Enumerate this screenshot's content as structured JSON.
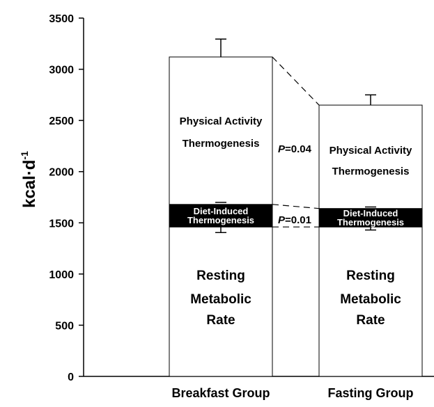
{
  "chart_data": {
    "type": "bar",
    "subtype": "stacked",
    "ylabel_main": "kcal·d",
    "ylabel_sup": "-1",
    "ylim": [
      0,
      3500
    ],
    "yticks": [
      0,
      500,
      1000,
      1500,
      2000,
      2500,
      3000,
      3500
    ],
    "categories": [
      "Breakfast Group",
      "Fasting Group"
    ],
    "series": [
      {
        "name": "Resting Metabolic Rate",
        "values": [
          1460,
          1460
        ],
        "color": "#ffffff"
      },
      {
        "name": "Diet-Induced Thermogenesis",
        "values": [
          220,
          180
        ],
        "color": "#000000"
      },
      {
        "name": "Physical Activity Thermogenesis",
        "values": [
          1440,
          1010
        ],
        "color": "#ffffff"
      }
    ],
    "error_bars": {
      "total": [
        {
          "value": 3120,
          "error": 175
        },
        {
          "value": 2650,
          "error": 100
        }
      ],
      "resting": [
        {
          "value": 1460,
          "error": 55
        },
        {
          "value": 1460,
          "error": 30
        }
      ],
      "dit_top": [
        {
          "value": 1680,
          "error": 20
        },
        {
          "value": 1640,
          "error": 15
        }
      ]
    },
    "segment_labels": {
      "resting": [
        "Resting",
        "Metabolic",
        "Rate"
      ],
      "dit": [
        "Diet-Induced",
        "Thermogenesis"
      ],
      "pat": [
        "Physical Activity",
        "Thermogenesis"
      ]
    },
    "annotations": [
      {
        "prefix": "P",
        "text": "=0.04"
      },
      {
        "prefix": "P",
        "text": "=0.01"
      }
    ]
  }
}
